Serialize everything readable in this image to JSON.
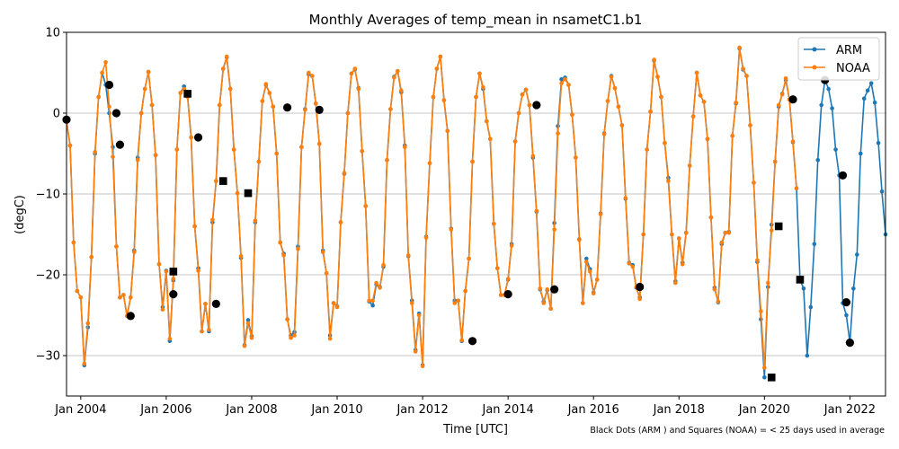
{
  "figure": {
    "title": "Monthly Averages of temp_mean in nsametC1.b1",
    "footnote": "Black Dots (ARM ) and Squares (NOAA) = < 25 days used in average"
  },
  "chart_data": {
    "type": "line",
    "title": "Monthly Averages of temp_mean in nsametC1.b1",
    "xlabel": "Time [UTC]",
    "ylabel": "(degC)",
    "xlim": [
      "2003-09",
      "2022-11"
    ],
    "ylim": [
      -35,
      10
    ],
    "x_ticks": [
      "Jan 2004",
      "Jan 2006",
      "Jan 2008",
      "Jan 2010",
      "Jan 2012",
      "Jan 2014",
      "Jan 2016",
      "Jan 2018",
      "Jan 2020",
      "Jan 2022"
    ],
    "y_ticks": [
      -30,
      -20,
      -10,
      0,
      10
    ],
    "grid": "horizontal",
    "legend_position": "top-right",
    "series": [
      {
        "name": "ARM",
        "color": "#1f77b4",
        "start": "2003-09",
        "values": [
          -1,
          -4,
          -16,
          -22,
          -22.8,
          -31.2,
          -26.5,
          -17.8,
          -5,
          2,
          5,
          3.5,
          0,
          -4.2,
          -16.5,
          -22.8,
          -22.5,
          -25.1,
          -22.8,
          -17,
          -5.5,
          0,
          3,
          5.1,
          1,
          -5.2,
          -18.7,
          -24,
          -19.5,
          -28.2,
          -20.7,
          -4.5,
          2.5,
          3.3,
          2,
          -3,
          -14,
          -19.2,
          -27,
          -23.6,
          -27,
          -13.5,
          -8.4,
          1,
          5.5,
          6.9,
          3,
          -4.5,
          -9.9,
          -17.9,
          -28.7,
          -25.6,
          -27.6,
          -13.5,
          -6,
          1.5,
          3.5,
          2.5,
          0.8,
          -5,
          -16,
          -17.4,
          -25.5,
          -27.5,
          -27.1,
          -16.5,
          -4.2,
          0.5,
          4.8,
          4.6,
          1.2,
          -3.8,
          -17,
          -19.8,
          -27.5,
          -23.5,
          -23.9,
          -13.5,
          -7.5,
          0,
          4.9,
          5.4,
          3.1,
          -4.7,
          -11.5,
          -23.3,
          -23.8,
          -21.2,
          -21.5,
          -19,
          -5.8,
          0.5,
          4.5,
          5.2,
          2.6,
          -4,
          -17.7,
          -23.2,
          -29.3,
          -24.8,
          -31.2,
          -15.3,
          -6.2,
          2,
          5.5,
          7,
          1.6,
          -2.2,
          -14.3,
          -23.2,
          -23.2,
          -28.2,
          -22,
          -18,
          -6,
          2,
          4.9,
          3,
          -1,
          -3.2,
          -13.7,
          -19.2,
          -22.5,
          -22.5,
          -20.6,
          -16.2,
          -3.5,
          0,
          2.3,
          2.9,
          1,
          -5.5,
          -12.2,
          -21.8,
          -23.3,
          -21.9,
          -24.2,
          -13.6,
          -1.6,
          4.2,
          4.4,
          3.5,
          -0.2,
          -5.5,
          -15.6,
          -23.5,
          -18,
          -19.3,
          -22.2,
          -20.6,
          -12.4,
          -2.5,
          1.5,
          4.6,
          3.1,
          0.8,
          -1.5,
          -10.6,
          -18.5,
          -18.8,
          -21.6,
          -22.8,
          -15,
          -4.5,
          0.2,
          6.5,
          4.5,
          2,
          -3.7,
          -8,
          -15,
          -20.8,
          -15.5,
          -18.5,
          -14.8,
          -6.5,
          -0.4,
          5,
          2.2,
          1.4,
          -3.2,
          -12.9,
          -21.6,
          -23.4,
          -16.2,
          -14.8,
          -14.7,
          -2.8,
          1.2,
          8,
          5.4,
          4.6,
          -1.5,
          -8.6,
          -18.4,
          -25.5,
          -32.7,
          -21.5,
          -13.8,
          -6,
          0.8,
          2.4,
          4.1,
          1.7,
          -3.6,
          -9.3,
          -20.6,
          -21.7,
          -30,
          -24,
          -16.2,
          -5.8,
          1,
          4.1,
          3,
          0.6,
          -4.5,
          -7.7,
          -23.5,
          -25,
          -28.4,
          -21.7,
          -17.5,
          -5,
          1.8,
          2.8,
          3.7,
          1.3,
          -3.7,
          -9.7,
          -15
        ]
      },
      {
        "name": "NOAA",
        "color": "#ff7f0e",
        "start": "2003-09",
        "values": [
          -1,
          -4,
          -16,
          -22,
          -22.8,
          -31,
          -26,
          -17.8,
          -4.8,
          2,
          5,
          6.3,
          0.8,
          -5.4,
          -16.5,
          -22.8,
          -22.5,
          -25.1,
          -22.8,
          -17.2,
          -5.8,
          0,
          3,
          5.1,
          1,
          -5.2,
          -18.7,
          -24.3,
          -19.6,
          -27.9,
          -20.5,
          -4.5,
          2.5,
          3,
          2,
          -3,
          -14,
          -19.5,
          -27,
          -23.6,
          -26.8,
          -13.2,
          -8.4,
          1,
          5.5,
          7,
          3,
          -4.5,
          -9.9,
          -17.7,
          -28.8,
          -26,
          -27.8,
          -13.3,
          -6,
          1.5,
          3.6,
          2.5,
          0.8,
          -5,
          -16,
          -17.6,
          -25.5,
          -27.8,
          -27.5,
          -16.8,
          -4.2,
          0.4,
          5,
          4.6,
          1.2,
          -3.8,
          -17.2,
          -19.8,
          -27.9,
          -23.5,
          -24,
          -13.5,
          -7.4,
          0,
          4.9,
          5.5,
          3,
          -4.7,
          -11.5,
          -23.2,
          -23.2,
          -21,
          -21.6,
          -18.8,
          -5.8,
          0.5,
          4.4,
          5.2,
          2.8,
          -4.2,
          -17.6,
          -23.5,
          -29.5,
          -25,
          -31.3,
          -15.4,
          -6.2,
          2,
          5.5,
          7,
          1.6,
          -2.2,
          -14.4,
          -23.5,
          -23.2,
          -28.1,
          -22,
          -18,
          -6,
          2,
          4.9,
          3.2,
          -1,
          -3.2,
          -13.7,
          -19.2,
          -22.5,
          -22.5,
          -20.5,
          -16.4,
          -3.5,
          0,
          2.3,
          2.9,
          1,
          -5.3,
          -12.1,
          -21.7,
          -23.5,
          -21.8,
          -24.2,
          -14.4,
          -2.5,
          3.7,
          4.2,
          3.5,
          -0.2,
          -5.5,
          -15.7,
          -23.5,
          -18.4,
          -19.6,
          -22.3,
          -20.6,
          -12.5,
          -2.6,
          1.5,
          4.5,
          3.1,
          0.8,
          -1.5,
          -10.5,
          -18.6,
          -19,
          -21.5,
          -23,
          -15,
          -4.5,
          0.2,
          6.6,
          4.5,
          2,
          -3.7,
          -8.4,
          -15,
          -21,
          -15.5,
          -18.7,
          -14.8,
          -6.5,
          -0.4,
          5,
          2.2,
          1.4,
          -3.2,
          -12.9,
          -21.8,
          -23.3,
          -16,
          -14.8,
          -14.8,
          -2.8,
          1.3,
          8.1,
          5.5,
          4.6,
          -1.5,
          -8.6,
          -18.2,
          -24.5,
          -31.5,
          -21,
          -14.5,
          -6,
          1,
          2.3,
          4.3,
          1.7,
          -3.5,
          -9.3
        ]
      }
    ],
    "arm_under_25_days": [
      {
        "x": "2003-09",
        "y": -0.8
      },
      {
        "x": "2004-09",
        "y": 3.5
      },
      {
        "x": "2004-11",
        "y": 0
      },
      {
        "x": "2004-12",
        "y": -3.9
      },
      {
        "x": "2005-03",
        "y": -25.1
      },
      {
        "x": "2006-03",
        "y": -22.4
      },
      {
        "x": "2006-10",
        "y": -3
      },
      {
        "x": "2007-03",
        "y": -23.6
      },
      {
        "x": "2008-11",
        "y": 0.7
      },
      {
        "x": "2009-08",
        "y": 0.4
      },
      {
        "x": "2013-03",
        "y": -28.2
      },
      {
        "x": "2014-01",
        "y": -22.4
      },
      {
        "x": "2014-09",
        "y": 1
      },
      {
        "x": "2015-02",
        "y": -21.8
      },
      {
        "x": "2017-02",
        "y": -21.5
      },
      {
        "x": "2020-09",
        "y": 1.7
      },
      {
        "x": "2021-06",
        "y": 4.1
      },
      {
        "x": "2021-11",
        "y": -7.7
      },
      {
        "x": "2021-12",
        "y": -23.4
      },
      {
        "x": "2022-01",
        "y": -28.4
      }
    ],
    "noaa_under_25_days": [
      {
        "x": "2006-03",
        "y": -19.6
      },
      {
        "x": "2006-07",
        "y": 2.4
      },
      {
        "x": "2007-05",
        "y": -8.4
      },
      {
        "x": "2007-12",
        "y": -9.9
      },
      {
        "x": "2020-03",
        "y": -32.7
      },
      {
        "x": "2020-05",
        "y": -14
      },
      {
        "x": "2020-11",
        "y": -20.6
      }
    ]
  }
}
